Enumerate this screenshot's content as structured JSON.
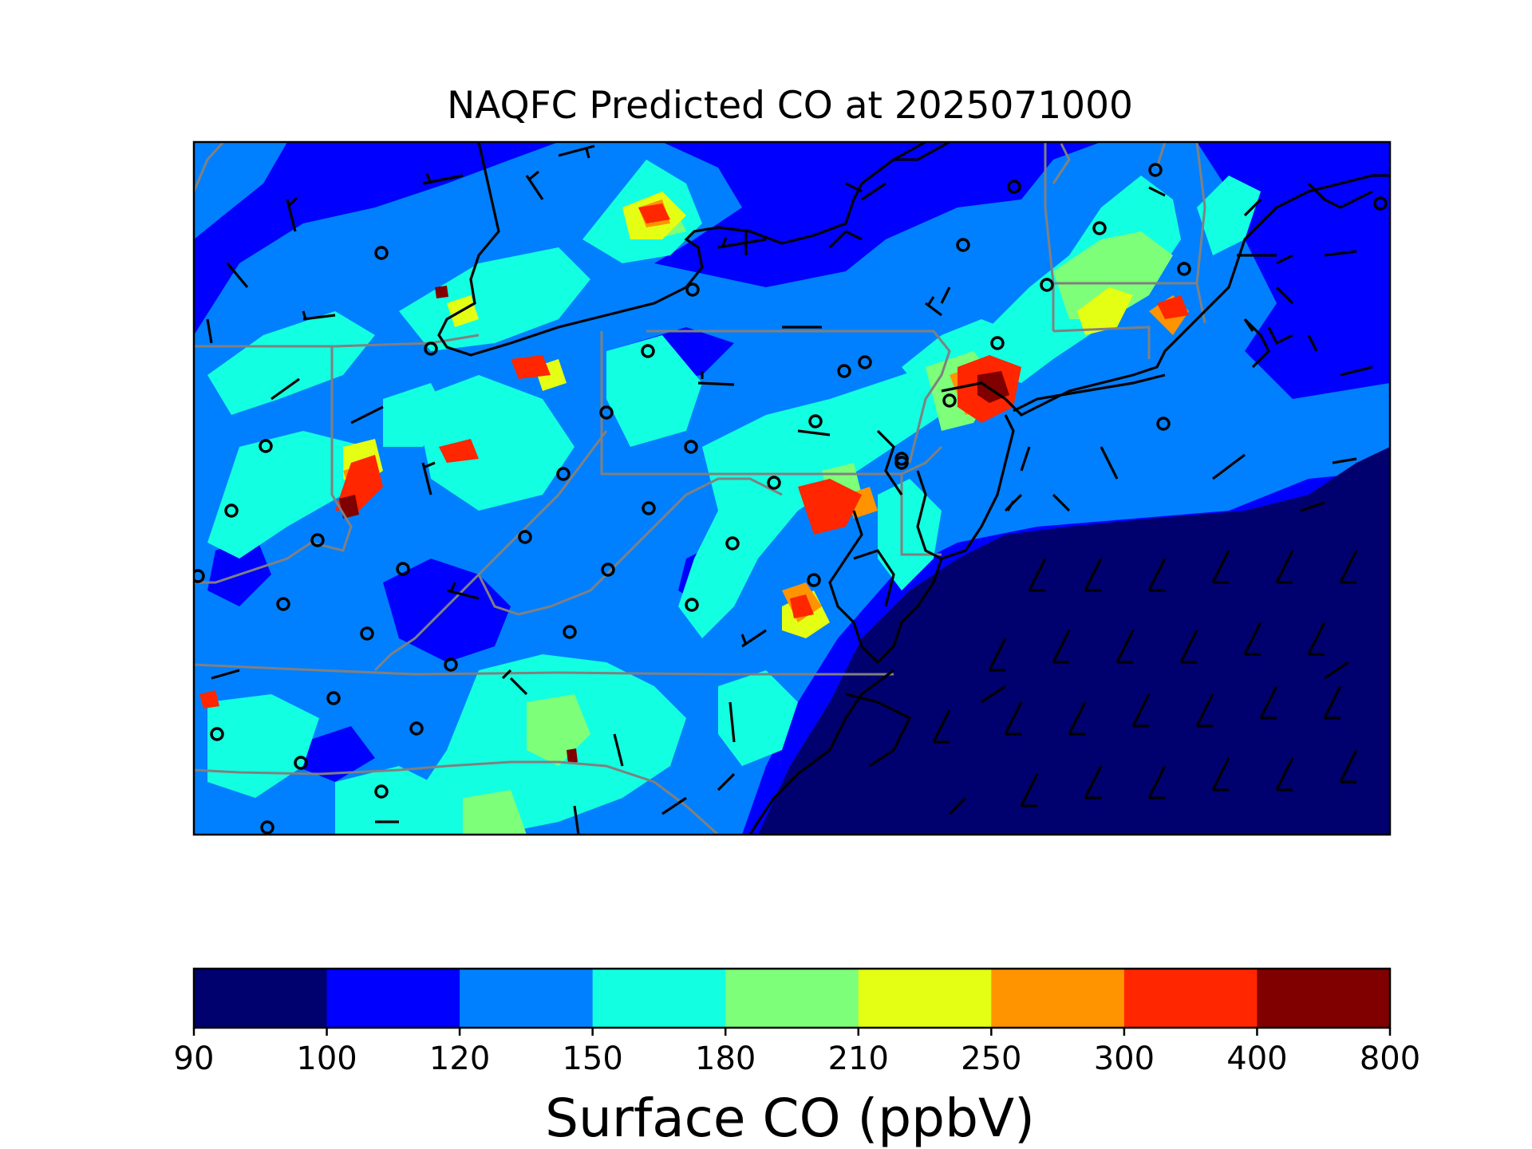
{
  "title": "NAQFC Predicted CO at 2025071000",
  "colorbar": {
    "label": "Surface CO (ppbV)",
    "bins": [
      {
        "from": 90,
        "to": 100,
        "color": "#00006f"
      },
      {
        "from": 100,
        "to": 120,
        "color": "#0000ff"
      },
      {
        "from": 120,
        "to": 150,
        "color": "#0080ff"
      },
      {
        "from": 150,
        "to": 180,
        "color": "#13ffe1"
      },
      {
        "from": 180,
        "to": 210,
        "color": "#7dff7a"
      },
      {
        "from": 210,
        "to": 250,
        "color": "#e4ff13"
      },
      {
        "from": 250,
        "to": 300,
        "color": "#ff9400"
      },
      {
        "from": 300,
        "to": 400,
        "color": "#ff2600"
      },
      {
        "from": 400,
        "to": 800,
        "color": "#800000"
      }
    ],
    "tick_labels": [
      "90",
      "100",
      "120",
      "150",
      "180",
      "210",
      "250",
      "300",
      "400",
      "800"
    ]
  },
  "map_layers": {
    "field": "Surface CO concentration",
    "coastline_color": "#000000",
    "state_border_color": "#808080",
    "station_marker": "open-circle",
    "wind_symbol": "wind-barb"
  }
}
